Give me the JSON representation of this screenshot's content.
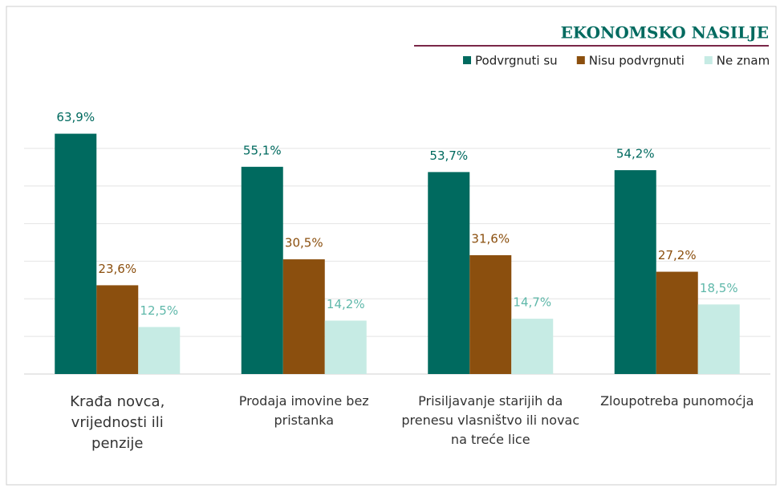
{
  "chart_data": {
    "type": "bar",
    "title": "EKONOMSKO NASILJE",
    "categories": [
      "Krađa novca, vrijednosti ili penzije",
      "Prodaja imovine bez pristanka",
      "Prisiljavanje starijih da prenesu vlasništvo ili novac na treće lice",
      "Zloupotreba punomoćja"
    ],
    "series": [
      {
        "name": "Podvrgnuti su",
        "color": "#006a5f",
        "values": [
          63.9,
          55.1,
          53.7,
          54.2
        ],
        "value_labels": [
          "63,9%",
          "55,1%",
          "53,7%",
          "54,2%"
        ]
      },
      {
        "name": "Nisu podvrgnuti",
        "color": "#8b4f0e",
        "values": [
          23.6,
          30.5,
          31.6,
          27.2
        ],
        "value_labels": [
          "23,6%",
          "30,5%",
          "31,6%",
          "27,2%"
        ]
      },
      {
        "name": "Ne znam",
        "color": "#c6ebe4",
        "values": [
          12.5,
          14.2,
          14.7,
          18.5
        ],
        "value_labels": [
          "12,5%",
          "14,2%",
          "14,7%",
          "18,5%"
        ]
      }
    ],
    "label_colors": [
      "#006a5f",
      "#8b4f0e",
      "#5fb8aa"
    ],
    "ylim": [
      0,
      70
    ],
    "yticks": [
      0,
      10,
      20,
      30,
      40,
      50,
      60
    ],
    "grid": true,
    "legend": "top-right"
  }
}
